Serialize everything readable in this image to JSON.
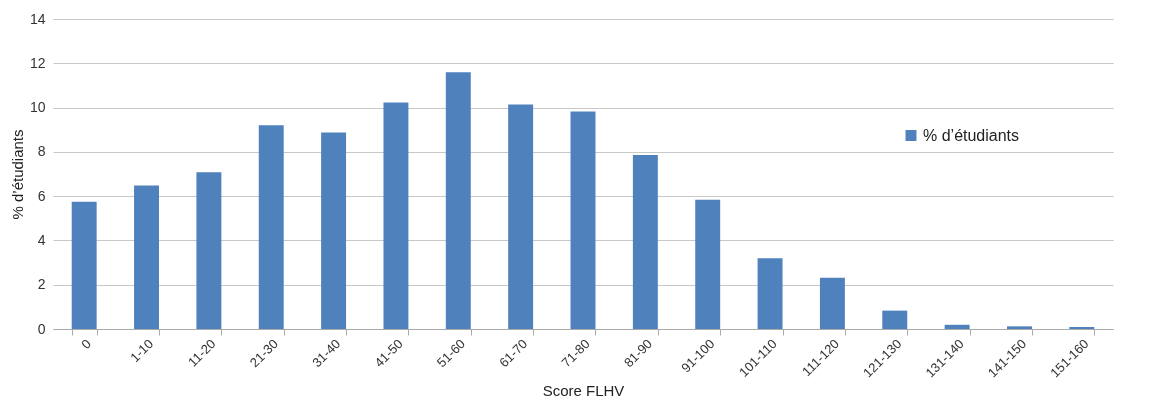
{
  "chart_data": {
    "type": "bar",
    "xlabel": "Score FLHV",
    "ylabel": "% d’étudiants",
    "categories": [
      "0",
      "1-10",
      "11-20",
      "21-30",
      "31-40",
      "41-50",
      "51-60",
      "61-70",
      "71-80",
      "81-90",
      "91-100",
      "101-110",
      "111-120",
      "121-130",
      "131-140",
      "141-150",
      "151-160"
    ],
    "series": [
      {
        "name": "% d’étudiants",
        "color": "#4f81bd",
        "values": [
          5.75,
          6.48,
          7.08,
          9.2,
          8.87,
          10.23,
          11.59,
          10.14,
          9.82,
          7.86,
          5.84,
          3.2,
          2.32,
          0.83,
          0.19,
          0.12,
          0.09
        ]
      }
    ],
    "ylim": [
      0,
      14
    ],
    "yticks": [
      0,
      2,
      4,
      6,
      8,
      10,
      12,
      14
    ],
    "grid": "y",
    "legend": "right"
  }
}
